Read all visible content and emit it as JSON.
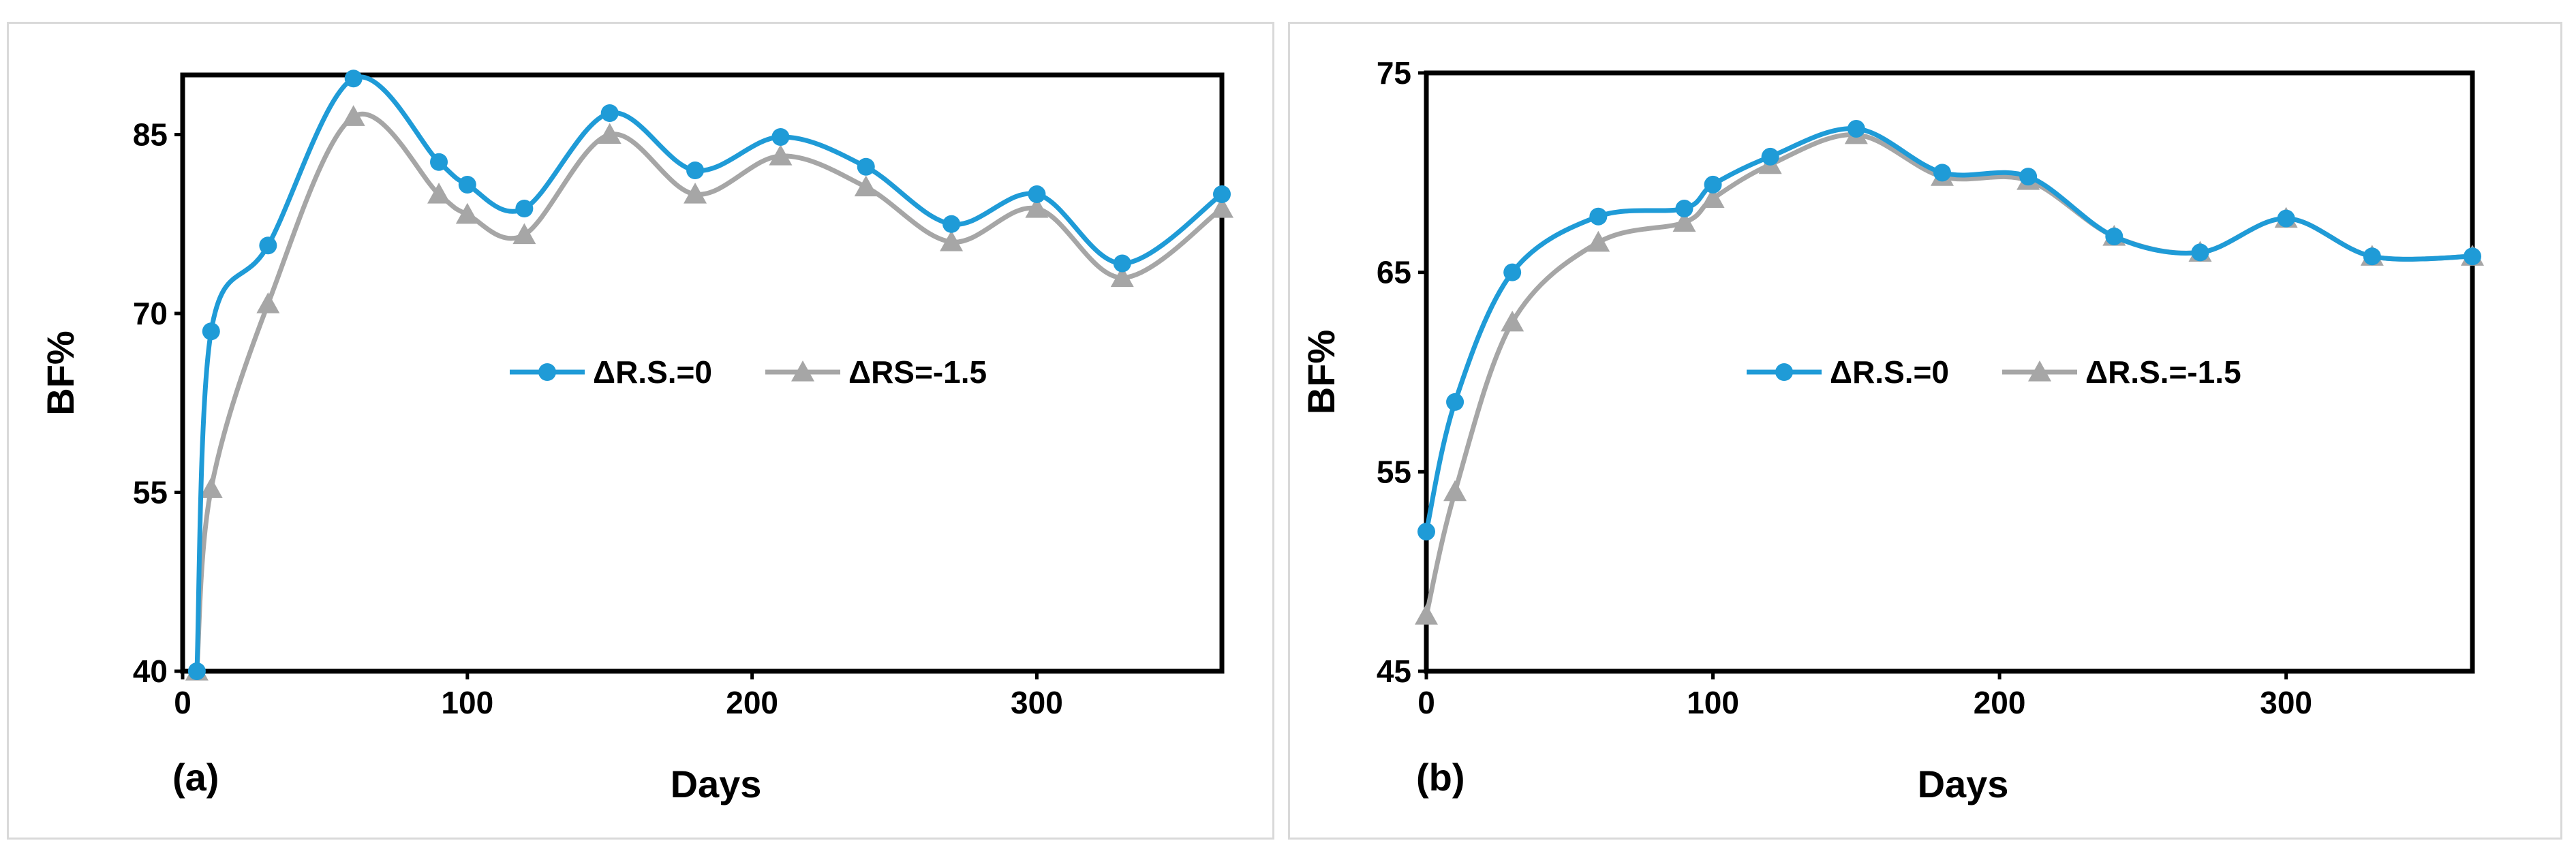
{
  "chart_data": [
    {
      "type": "line",
      "panel_label": "(a)",
      "xlabel": "Days",
      "ylabel": "BF%",
      "xlim": [
        0,
        365
      ],
      "ylim": [
        40,
        90
      ],
      "xticks": [
        0,
        100,
        200,
        300
      ],
      "yticks": [
        40,
        55,
        70,
        85
      ],
      "grid": false,
      "legend": "center",
      "series": [
        {
          "name": "ΔR.S.=0",
          "color": "#1f9bd7",
          "marker": "circle",
          "x": [
            5,
            10,
            30,
            60,
            90,
            100,
            120,
            150,
            180,
            210,
            240,
            270,
            300,
            330,
            365
          ],
          "y": [
            40,
            68.5,
            75.7,
            89.7,
            82.7,
            80.8,
            78.8,
            86.8,
            82,
            84.8,
            82.3,
            77.5,
            80,
            74.2,
            80
          ]
        },
        {
          "name": "ΔRS=-1.5",
          "color": "#a6a6a6",
          "marker": "triangle",
          "x": [
            5,
            10,
            30,
            60,
            90,
            100,
            120,
            150,
            180,
            210,
            240,
            270,
            300,
            330,
            365
          ],
          "y": [
            40,
            55.3,
            70.8,
            86.5,
            80,
            78.3,
            76.6,
            85,
            80,
            83.2,
            80.6,
            76,
            78.8,
            73,
            78.8
          ]
        }
      ]
    },
    {
      "type": "line",
      "panel_label": "(b)",
      "xlabel": "Days",
      "ylabel": "BF%",
      "xlim": [
        0,
        365
      ],
      "ylim": [
        45,
        75
      ],
      "xticks": [
        0,
        100,
        200,
        300
      ],
      "yticks": [
        45,
        55,
        65,
        75
      ],
      "grid": false,
      "legend": "center",
      "series": [
        {
          "name": "ΔR.S.=0",
          "color": "#1f9bd7",
          "marker": "circle",
          "x": [
            0,
            10,
            30,
            60,
            90,
            100,
            120,
            150,
            180,
            210,
            240,
            270,
            300,
            330,
            365
          ],
          "y": [
            52,
            58.5,
            65,
            67.8,
            68.2,
            69.4,
            70.8,
            72.2,
            70,
            69.8,
            66.8,
            66,
            67.7,
            65.8,
            65.8
          ]
        },
        {
          "name": "ΔR.S.=-1.5",
          "color": "#a6a6a6",
          "marker": "triangle",
          "x": [
            0,
            10,
            30,
            60,
            90,
            100,
            120,
            150,
            180,
            210,
            240,
            270,
            300,
            330,
            365
          ],
          "y": [
            47.8,
            54,
            62.5,
            66.5,
            67.5,
            68.7,
            70.4,
            71.9,
            69.8,
            69.6,
            66.8,
            66,
            67.7,
            65.8,
            65.8
          ]
        }
      ]
    }
  ]
}
